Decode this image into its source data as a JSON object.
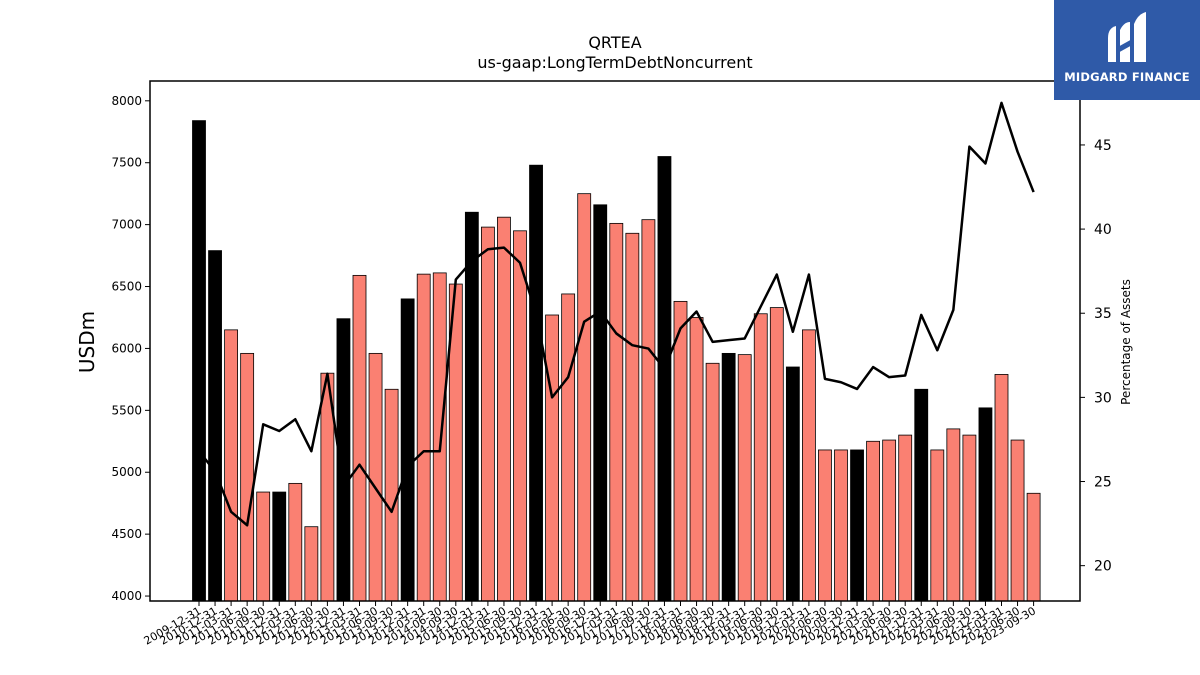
{
  "logo": {
    "text": "MIDGARD FINANCE"
  },
  "chart_data": {
    "type": "bar",
    "title": "QRTEA",
    "subtitle": "us-gaap:LongTermDebtNoncurrent",
    "ylabel": "USDm",
    "y2label": "Percentage of Assets",
    "ylim": [
      3960,
      8160
    ],
    "y2lim": [
      17.9,
      48.8
    ],
    "yticks": [
      4000,
      4500,
      5000,
      5500,
      6000,
      6500,
      7000,
      7500,
      8000
    ],
    "y2ticks": [
      20,
      25,
      30,
      35,
      40,
      45
    ],
    "grid": false,
    "colors": {
      "annual": "#000000",
      "quarter": "#fa8072",
      "line": "#000000"
    },
    "categories": [
      "2009-12-31",
      "2010-12-31",
      "2011-03-31",
      "2011-06-30",
      "2011-09-30",
      "2011-12-31",
      "2012-03-31",
      "2012-06-30",
      "2012-09-30",
      "2012-12-31",
      "2013-03-31",
      "2013-06-30",
      "2013-09-30",
      "2013-12-31",
      "2014-03-31",
      "2014-06-30",
      "2014-09-30",
      "2014-12-31",
      "2015-03-31",
      "2015-06-30",
      "2015-09-30",
      "2015-12-31",
      "2016-03-31",
      "2016-06-30",
      "2016-09-30",
      "2016-12-31",
      "2017-03-31",
      "2017-06-30",
      "2017-09-30",
      "2017-12-31",
      "2018-03-31",
      "2018-06-30",
      "2018-09-30",
      "2018-12-31",
      "2019-03-31",
      "2019-06-30",
      "2019-09-30",
      "2019-12-31",
      "2020-03-31",
      "2020-06-30",
      "2020-09-30",
      "2020-12-31",
      "2021-03-31",
      "2021-06-30",
      "2021-09-30",
      "2021-12-31",
      "2022-03-31",
      "2022-06-30",
      "2022-09-30",
      "2022-12-31",
      "2023-03-31",
      "2023-06-30",
      "2023-09-30"
    ],
    "tick_labels": [
      "2009-12-31",
      "2010-12-31",
      "2011-03-31",
      "2011-06-30",
      "2011-09-30",
      "2011-12-31",
      "2012-03-31",
      "2012-06-30",
      "2012-09-30",
      "2012-12-31",
      "2013-03-31",
      "2013-06-30",
      "2013-09-30",
      "2013-12-31",
      "2014-03-31",
      "2014-06-30",
      "2014-09-30",
      "2014-12-31",
      "2015-03-31",
      "2015-06-30",
      "2015-09-30",
      "2015-12-31",
      "2016-03-31",
      "2016-06-30",
      "2016-09-30",
      "2016-12-31",
      "2017-03-31",
      "2017-06-30",
      "2017-09-30",
      "2017-12-31",
      "2018-03-31",
      "2018-06-30",
      "2018-09-30",
      "2018-12-31",
      "2019-03-31",
      "2019-06-30",
      "2019-09-30",
      "2019-12-31",
      "2020-03-31",
      "2020-06-30",
      "2020-09-30",
      "2020-12-31",
      "2021-03-31",
      "2021-06-30",
      "2021-09-30",
      "2021-12-31",
      "2022-03-31",
      "2022-06-30",
      "2022-09-30",
      "2022-12-31",
      "2023-03-31",
      "2023-06-30",
      "2023-09-30"
    ],
    "annual": [
      true,
      true,
      false,
      false,
      false,
      true,
      false,
      false,
      false,
      true,
      false,
      false,
      false,
      true,
      false,
      false,
      false,
      true,
      false,
      false,
      false,
      true,
      false,
      false,
      false,
      true,
      false,
      false,
      false,
      true,
      false,
      false,
      false,
      true,
      false,
      false,
      false,
      true,
      false,
      false,
      false,
      true,
      false,
      false,
      false,
      true,
      false,
      false,
      false,
      true,
      false,
      false,
      false
    ],
    "values": [
      7840,
      6790,
      6150,
      5960,
      4840,
      4840,
      4910,
      4560,
      5800,
      6240,
      6590,
      5960,
      5670,
      6400,
      6600,
      6610,
      6520,
      7100,
      6980,
      7060,
      6950,
      7480,
      6270,
      6440,
      7250,
      7160,
      7010,
      6930,
      7040,
      7550,
      6380,
      6250,
      5880,
      5960,
      5950,
      6280,
      6330,
      5850,
      6150,
      5180,
      5180,
      5180,
      5250,
      5260,
      5300,
      5670,
      5180,
      5350,
      5300,
      5520,
      5790,
      5260,
      4830
    ],
    "line_values": [
      26.8,
      25.6,
      23.2,
      22.4,
      28.4,
      28.0,
      28.7,
      26.8,
      31.4,
      24.7,
      26.0,
      24.6,
      23.2,
      25.9,
      26.8,
      26.8,
      37.0,
      38.1,
      38.8,
      38.9,
      38.0,
      35.0,
      30.0,
      31.2,
      34.5,
      35.1,
      33.8,
      33.1,
      32.9,
      31.7,
      34.1,
      35.1,
      33.3,
      33.4,
      33.5,
      35.4,
      37.3,
      33.9,
      37.3,
      31.1,
      30.9,
      30.5,
      31.8,
      31.2,
      31.3,
      34.9,
      32.8,
      35.2,
      44.9,
      43.9,
      47.5,
      44.6,
      42.2
    ]
  }
}
